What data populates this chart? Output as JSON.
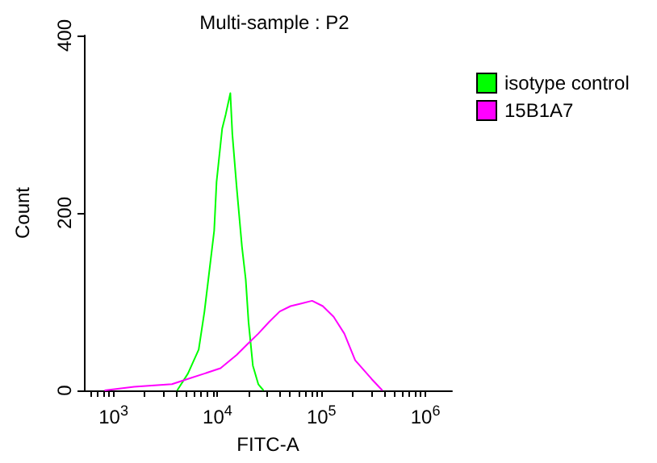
{
  "chart_data": {
    "type": "line",
    "title": "Multi-sample : P2",
    "xlabel": "FITC-A",
    "ylabel": "Count",
    "log": "x",
    "xlim": [
      520,
      1800000
    ],
    "ylim": [
      0,
      400
    ],
    "yticks": [
      0,
      200,
      400
    ],
    "xticks": [
      {
        "value": 600,
        "label": null
      },
      {
        "value": 700,
        "label": null
      },
      {
        "value": 800,
        "label": null
      },
      {
        "value": 900,
        "label": null
      },
      {
        "value": 1000,
        "label": "10$^{3}$"
      },
      {
        "value": 2000,
        "label": null
      },
      {
        "value": 3000,
        "label": null
      },
      {
        "value": 4000,
        "label": null
      },
      {
        "value": 5000,
        "label": null
      },
      {
        "value": 6000,
        "label": null
      },
      {
        "value": 7000,
        "label": null
      },
      {
        "value": 8000,
        "label": null
      },
      {
        "value": 9000,
        "label": null
      },
      {
        "value": 10000,
        "label": "10$^{4}$"
      },
      {
        "value": 20000,
        "label": null
      },
      {
        "value": 30000,
        "label": null
      },
      {
        "value": 40000,
        "label": null
      },
      {
        "value": 50000,
        "label": null
      },
      {
        "value": 60000,
        "label": null
      },
      {
        "value": 70000,
        "label": null
      },
      {
        "value": 80000,
        "label": null
      },
      {
        "value": 90000,
        "label": null
      },
      {
        "value": 100000,
        "label": "10$^{5}$"
      },
      {
        "value": 200000,
        "label": null
      },
      {
        "value": 300000,
        "label": null
      },
      {
        "value": 400000,
        "label": null
      },
      {
        "value": 500000,
        "label": null
      },
      {
        "value": 600000,
        "label": null
      },
      {
        "value": 700000,
        "label": null
      },
      {
        "value": 800000,
        "label": null
      },
      {
        "value": 900000,
        "label": null
      },
      {
        "value": 1000000,
        "label": "10$^{6}$"
      }
    ],
    "grid": false,
    "legend": "top right",
    "marker": "none",
    "line_style": "solid",
    "series": [
      {
        "name": "isotype control",
        "color": "#00ff00",
        "x": [
          4100,
          5200,
          6600,
          7500,
          8400,
          9300,
          9800,
          11100,
          12000,
          13300,
          13900,
          15300,
          17200,
          18700,
          19900,
          21900,
          24700,
          27700
        ],
        "values": [
          0,
          19,
          46,
          89,
          137,
          180,
          235,
          295,
          311,
          335,
          289,
          229,
          162,
          125,
          77,
          28,
          7,
          0
        ]
      },
      {
        "name": "15B1A7",
        "color": "#ff00ff",
        "x": [
          820,
          1580,
          3650,
          5200,
          7500,
          10700,
          15300,
          19400,
          24700,
          31300,
          39700,
          50500,
          64100,
          81300,
          103000,
          131000,
          166000,
          211000,
          303000,
          385000
        ],
        "values": [
          0,
          4,
          7,
          13,
          19,
          25,
          40,
          52,
          64,
          77,
          89,
          95,
          98,
          101,
          95,
          83,
          64,
          34,
          13,
          0
        ]
      }
    ]
  }
}
